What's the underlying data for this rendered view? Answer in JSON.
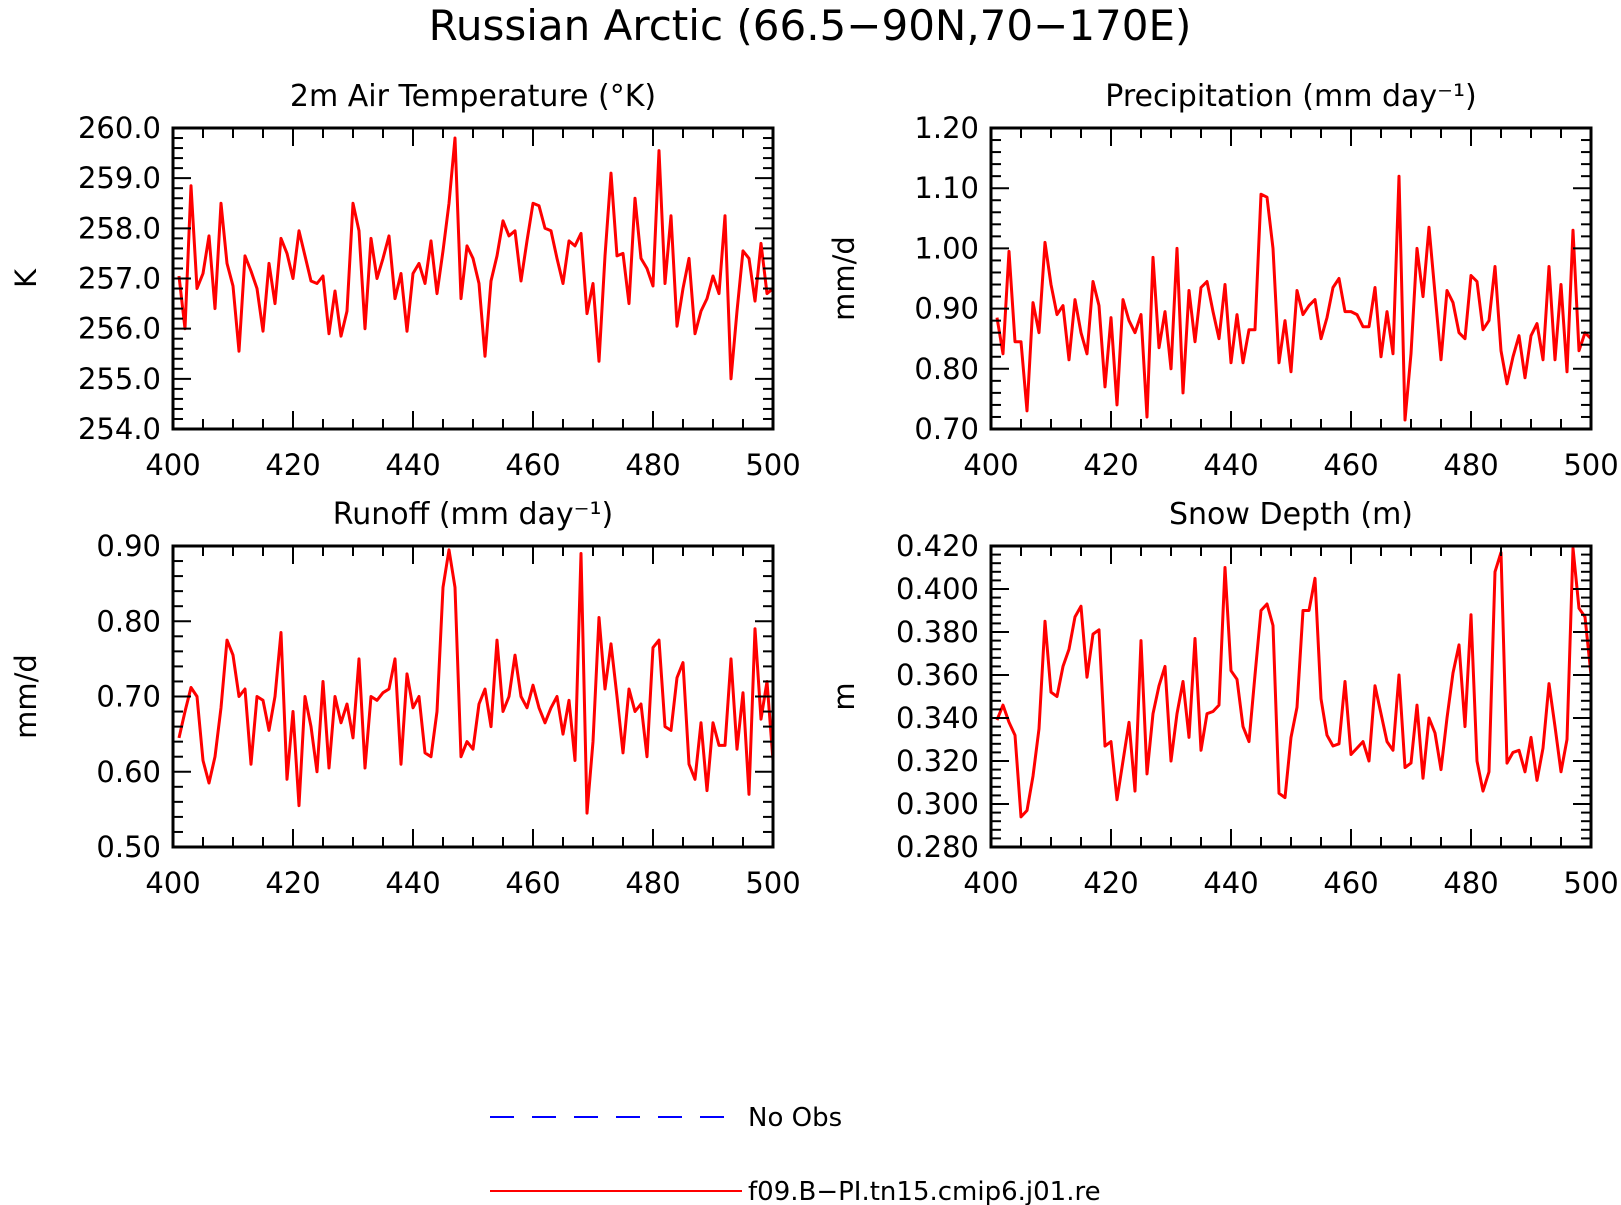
{
  "figure": {
    "title": "Russian Arctic (66.5−90N,70−170E)"
  },
  "legend": [
    {
      "label": "No Obs",
      "color": "#0000ff",
      "style": "dashed"
    },
    {
      "label": "f09.B−PI.tn15.cmip6.j01.re",
      "color": "#ff0000",
      "style": "solid"
    }
  ],
  "chart_data": [
    {
      "type": "line",
      "title": "2m Air Temperature (°K)",
      "ylabel": "K",
      "xlabel": "",
      "xlim": [
        400,
        500
      ],
      "ylim": [
        254.0,
        260.0
      ],
      "xticks": [
        "400",
        "420",
        "440",
        "460",
        "480",
        "500"
      ],
      "yticks": [
        "254.0",
        "255.0",
        "256.0",
        "257.0",
        "258.0",
        "259.0",
        "260.0"
      ],
      "series": [
        {
          "name": "f09.B−PI.tn15.cmip6.j01.re",
          "color": "#ff0000",
          "x_start": 401,
          "x_step": 1,
          "values": [
            257.05,
            256.0,
            258.85,
            256.8,
            257.1,
            257.85,
            256.4,
            258.5,
            257.3,
            256.85,
            255.55,
            257.45,
            257.15,
            256.8,
            255.95,
            257.3,
            256.5,
            257.8,
            257.5,
            257.0,
            257.95,
            257.45,
            256.95,
            256.9,
            257.05,
            255.9,
            256.75,
            255.85,
            256.35,
            258.5,
            257.95,
            256.0,
            257.8,
            257.0,
            257.4,
            257.85,
            256.6,
            257.1,
            255.95,
            257.1,
            257.3,
            256.9,
            257.75,
            256.7,
            257.55,
            258.5,
            259.8,
            256.6,
            257.65,
            257.4,
            256.9,
            255.45,
            256.95,
            257.45,
            258.15,
            257.85,
            257.95,
            256.95,
            257.75,
            258.5,
            258.45,
            258.0,
            257.95,
            257.4,
            256.9,
            257.75,
            257.65,
            257.9,
            256.3,
            256.9,
            255.35,
            257.45,
            259.1,
            257.45,
            257.5,
            256.5,
            258.6,
            257.4,
            257.2,
            256.85,
            259.55,
            256.9,
            258.25,
            256.05,
            256.8,
            257.4,
            255.9,
            256.35,
            256.6,
            257.05,
            256.7,
            258.25,
            255.0,
            256.35,
            257.55,
            257.4,
            256.55,
            257.7,
            256.7,
            256.8
          ]
        }
      ]
    },
    {
      "type": "line",
      "title": "Precipitation (mm day⁻¹)",
      "ylabel": "mm/d",
      "xlabel": "",
      "xlim": [
        400,
        500
      ],
      "ylim": [
        0.7,
        1.2
      ],
      "xticks": [
        "400",
        "420",
        "440",
        "460",
        "480",
        "500"
      ],
      "yticks": [
        "0.70",
        "0.80",
        "0.90",
        "1.00",
        "1.10",
        "1.20"
      ],
      "series": [
        {
          "name": "f09.B−PI.tn15.cmip6.j01.re",
          "color": "#ff0000",
          "x_start": 401,
          "x_step": 1,
          "values": [
            0.885,
            0.825,
            0.995,
            0.845,
            0.845,
            0.73,
            0.91,
            0.86,
            1.01,
            0.94,
            0.89,
            0.905,
            0.815,
            0.915,
            0.86,
            0.825,
            0.945,
            0.905,
            0.77,
            0.885,
            0.74,
            0.915,
            0.88,
            0.86,
            0.89,
            0.72,
            0.985,
            0.835,
            0.895,
            0.8,
            1.0,
            0.76,
            0.93,
            0.845,
            0.935,
            0.945,
            0.895,
            0.85,
            0.94,
            0.81,
            0.89,
            0.81,
            0.865,
            0.865,
            1.09,
            1.085,
            1.0,
            0.81,
            0.88,
            0.795,
            0.93,
            0.89,
            0.905,
            0.915,
            0.85,
            0.885,
            0.935,
            0.95,
            0.895,
            0.895,
            0.89,
            0.87,
            0.87,
            0.935,
            0.82,
            0.895,
            0.825,
            1.12,
            0.715,
            0.825,
            1.0,
            0.92,
            1.035,
            0.925,
            0.815,
            0.93,
            0.91,
            0.86,
            0.85,
            0.955,
            0.945,
            0.865,
            0.88,
            0.97,
            0.83,
            0.775,
            0.82,
            0.855,
            0.785,
            0.855,
            0.875,
            0.815,
            0.97,
            0.815,
            0.94,
            0.795,
            1.03,
            0.83,
            0.86,
            0.85
          ]
        }
      ]
    },
    {
      "type": "line",
      "title": "Runoff (mm day⁻¹)",
      "ylabel": "mm/d",
      "xlabel": "",
      "xlim": [
        400,
        500
      ],
      "ylim": [
        0.5,
        0.9
      ],
      "xticks": [
        "400",
        "420",
        "440",
        "460",
        "480",
        "500"
      ],
      "yticks": [
        "0.50",
        "0.60",
        "0.70",
        "0.80",
        "0.90"
      ],
      "series": [
        {
          "name": "f09.B−PI.tn15.cmip6.j01.re",
          "color": "#ff0000",
          "x_start": 401,
          "x_step": 1,
          "values": [
            0.645,
            0.68,
            0.712,
            0.7,
            0.615,
            0.585,
            0.62,
            0.685,
            0.775,
            0.755,
            0.7,
            0.71,
            0.61,
            0.7,
            0.695,
            0.655,
            0.7,
            0.785,
            0.59,
            0.68,
            0.555,
            0.7,
            0.66,
            0.6,
            0.72,
            0.605,
            0.7,
            0.665,
            0.69,
            0.645,
            0.75,
            0.605,
            0.7,
            0.695,
            0.705,
            0.71,
            0.75,
            0.61,
            0.73,
            0.685,
            0.7,
            0.625,
            0.62,
            0.68,
            0.845,
            0.895,
            0.845,
            0.62,
            0.64,
            0.63,
            0.69,
            0.71,
            0.66,
            0.775,
            0.68,
            0.7,
            0.755,
            0.7,
            0.685,
            0.715,
            0.685,
            0.665,
            0.685,
            0.7,
            0.65,
            0.695,
            0.615,
            0.89,
            0.545,
            0.64,
            0.805,
            0.71,
            0.77,
            0.7,
            0.625,
            0.71,
            0.68,
            0.69,
            0.62,
            0.765,
            0.775,
            0.66,
            0.655,
            0.725,
            0.745,
            0.61,
            0.59,
            0.665,
            0.575,
            0.665,
            0.635,
            0.635,
            0.75,
            0.63,
            0.705,
            0.57,
            0.79,
            0.67,
            0.72,
            0.615
          ]
        }
      ]
    },
    {
      "type": "line",
      "title": "Snow Depth (m)",
      "ylabel": "m",
      "xlabel": "",
      "xlim": [
        400,
        500
      ],
      "ylim": [
        0.28,
        0.42
      ],
      "xticks": [
        "400",
        "420",
        "440",
        "460",
        "480",
        "500"
      ],
      "yticks": [
        "0.280",
        "0.300",
        "0.320",
        "0.340",
        "0.360",
        "0.380",
        "0.400",
        "0.420"
      ],
      "series": [
        {
          "name": "f09.B−PI.tn15.cmip6.j01.re",
          "color": "#ff0000",
          "x_start": 401,
          "x_step": 1,
          "values": [
            0.339,
            0.346,
            0.338,
            0.332,
            0.294,
            0.297,
            0.313,
            0.335,
            0.385,
            0.352,
            0.35,
            0.364,
            0.372,
            0.387,
            0.392,
            0.359,
            0.379,
            0.381,
            0.327,
            0.329,
            0.302,
            0.32,
            0.338,
            0.306,
            0.376,
            0.314,
            0.342,
            0.355,
            0.364,
            0.32,
            0.342,
            0.357,
            0.331,
            0.377,
            0.325,
            0.342,
            0.343,
            0.346,
            0.41,
            0.362,
            0.358,
            0.336,
            0.329,
            0.36,
            0.39,
            0.393,
            0.383,
            0.305,
            0.303,
            0.331,
            0.345,
            0.39,
            0.39,
            0.405,
            0.349,
            0.332,
            0.327,
            0.328,
            0.357,
            0.323,
            0.326,
            0.329,
            0.32,
            0.355,
            0.342,
            0.329,
            0.325,
            0.36,
            0.317,
            0.319,
            0.346,
            0.312,
            0.34,
            0.333,
            0.316,
            0.34,
            0.361,
            0.374,
            0.336,
            0.388,
            0.32,
            0.306,
            0.315,
            0.408,
            0.417,
            0.319,
            0.324,
            0.325,
            0.315,
            0.331,
            0.311,
            0.326,
            0.356,
            0.336,
            0.315,
            0.33,
            0.419,
            0.391,
            0.387,
            0.36
          ]
        }
      ]
    }
  ]
}
